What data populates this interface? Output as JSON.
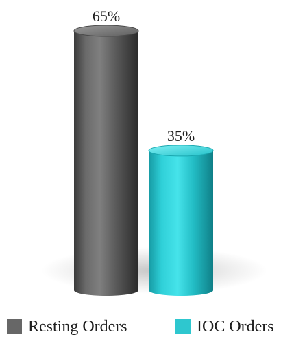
{
  "chart_data": {
    "type": "bar",
    "categories": [
      "Resting Orders",
      "IOC Orders"
    ],
    "values": [
      65,
      35
    ],
    "value_labels": [
      "65%",
      "35%"
    ],
    "colors": [
      "#676767",
      "#2ec7cf"
    ],
    "title": "",
    "xlabel": "",
    "ylabel": "",
    "ylim": [
      0,
      65
    ],
    "grid": false,
    "legend_position": "bottom",
    "style": "3d-cylinder"
  },
  "legend": {
    "items": [
      {
        "label": "Resting Orders",
        "color": "#676767"
      },
      {
        "label": "IOC Orders",
        "color": "#2ec7cf"
      }
    ]
  }
}
